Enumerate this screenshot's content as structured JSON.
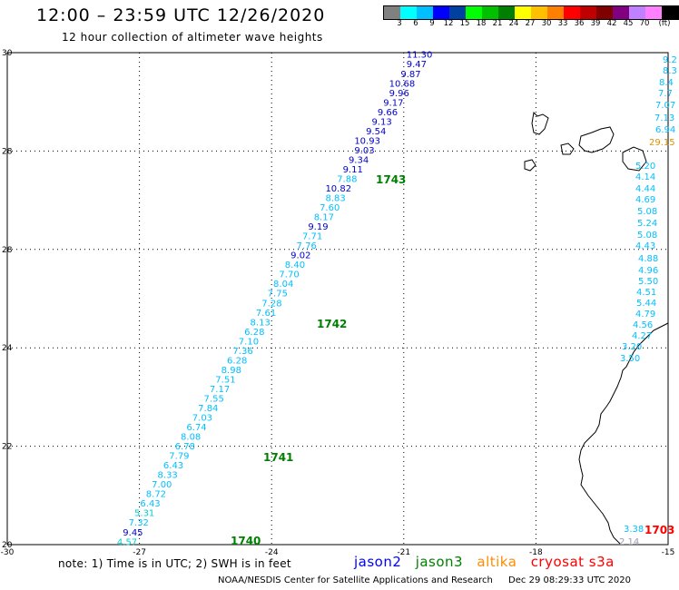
{
  "title": "12:00 – 23:59 UTC 12/26/2020",
  "subtitle": "12 hour collection of altimeter wave heights",
  "colorbar": {
    "colors": [
      "#808080",
      "#00ffff",
      "#00bfff",
      "#0000ff",
      "#0040a0",
      "#00ff00",
      "#00c000",
      "#008000",
      "#ffff00",
      "#ffc000",
      "#ff8000",
      "#ff0000",
      "#c00000",
      "#800000",
      "#800080",
      "#c080ff",
      "#ff80ff",
      "#000000"
    ],
    "labels": [
      "3",
      "6",
      "9",
      "12",
      "15",
      "18",
      "21",
      "24",
      "27",
      "30",
      "33",
      "36",
      "39",
      "42",
      "45",
      "70",
      "(ft)"
    ]
  },
  "axes": {
    "y_labels": [
      "30",
      "28",
      "28",
      "24",
      "22",
      "20"
    ],
    "x_labels": [
      "-30",
      "-27",
      "-24",
      "-21",
      "-18",
      "-15"
    ]
  },
  "chart_data": {
    "type": "map",
    "lon_range": [
      -30,
      -15
    ],
    "lat_range": [
      20,
      30
    ],
    "grid": "dotted",
    "passes": [
      {
        "label": "1740",
        "satellite": "jason3",
        "values": [
          "4.57",
          "9.45",
          "7.32",
          "5.31",
          "6.43",
          "8.72",
          "7.00",
          "8.33",
          "6.43",
          "7.79",
          "6.78",
          "8.08",
          "6.74",
          "7.03",
          "7.84",
          "7.55",
          "7.17",
          "7.51",
          "8.98",
          "6.28",
          "7.36",
          "7.10",
          "6.28",
          "8.13",
          "7.61",
          "7.28",
          "7.75",
          "8.04",
          "7.70",
          "8.40",
          "9.02",
          "7.76",
          "7.71",
          "9.19",
          "8.17",
          "7.60",
          "8.83",
          "10.82",
          "7.88",
          "9.11",
          "9.34",
          "9.03",
          "10.93",
          "9.54",
          "9.13",
          "9.66",
          "9.17",
          "9.96",
          "10.68",
          "9.87",
          "9.47",
          "11.30"
        ]
      },
      {
        "label": "1703",
        "satellite": "cryosat s3a",
        "values": [
          "2.14",
          "3.38",
          "3.50",
          "3.20",
          "4.27",
          "4.56",
          "4.79",
          "5.44",
          "4.51",
          "5.50",
          "4.96",
          "4.88",
          "4.43",
          "5.08",
          "5.24",
          "5.08",
          "4.69",
          "4.44",
          "4.14",
          "5.20",
          "29.15",
          "6.94",
          "7.13",
          "7.07",
          "7.7",
          "8.4",
          "8.3",
          "9.2"
        ]
      }
    ],
    "orbit_labels": [
      "1743",
      "1742",
      "1741",
      "1740",
      "1703"
    ]
  },
  "note": "note: 1) Time is in UTC; 2) SWH is in feet",
  "legend": [
    {
      "name": "jason2",
      "color": "#0000ff"
    },
    {
      "name": "jason3",
      "color": "#008000"
    },
    {
      "name": "altika",
      "color": "#ff8c00"
    },
    {
      "name": "cryosat s3a",
      "color": "#ff0000"
    }
  ],
  "footer": {
    "credit": "NOAA/NESDIS Center for Satellite Applications and Research",
    "timestamp": "Dec 29 08:29:33 UTC 2020"
  }
}
